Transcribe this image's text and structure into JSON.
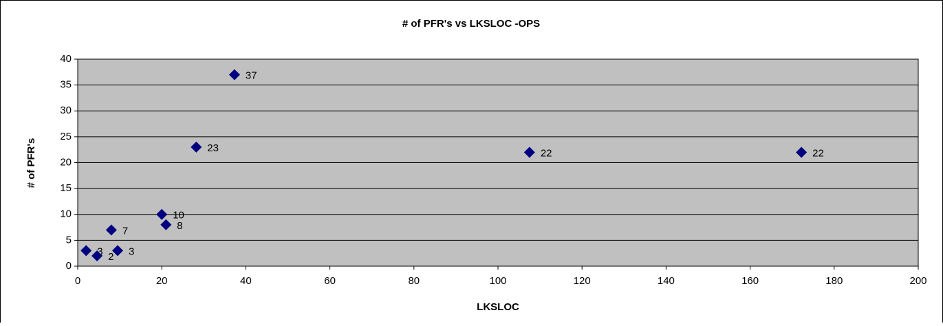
{
  "chart_data": {
    "type": "scatter",
    "title": "# of PFR's vs LKSLOC -OPS",
    "xlabel": "LKSLOC",
    "ylabel": "# of PFR's",
    "series": [
      {
        "color": "#000080",
        "x": [
          2,
          4.6,
          8,
          9.5,
          20,
          21,
          28.2,
          37.3,
          107.5,
          172.2
        ],
        "values": [
          3,
          2,
          7,
          3,
          10,
          8,
          23,
          37,
          22,
          22
        ]
      }
    ],
    "xlim": [
      0,
      200
    ],
    "xticks": [
      0,
      20,
      40,
      60,
      80,
      100,
      120,
      140,
      160,
      180,
      200
    ],
    "ylim": [
      0,
      40
    ],
    "yticks": [
      0,
      5,
      10,
      15,
      20,
      25,
      30,
      35,
      40
    ],
    "grid": true,
    "plot_background": "#c0c0c0"
  }
}
